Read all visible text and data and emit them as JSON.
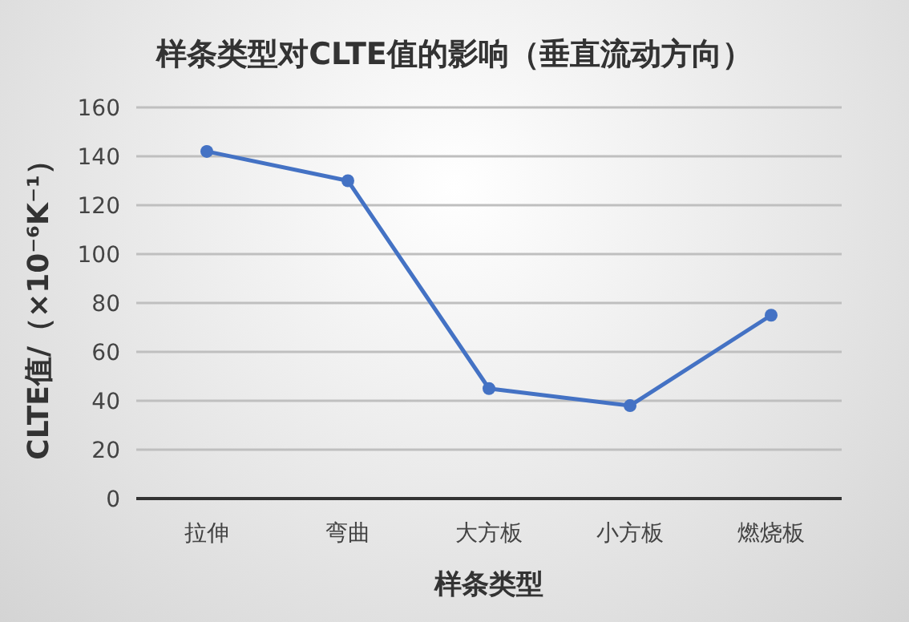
{
  "chart_data": {
    "type": "line",
    "title": "样条类型对CLTE值的影响（垂直流动方向）",
    "xlabel": "样条类型",
    "ylabel": "CLTE值/（×10⁻⁶K⁻¹）",
    "categories": [
      "拉伸",
      "弯曲",
      "大方板",
      "小方板",
      "燃烧板"
    ],
    "series": [
      {
        "color": "#4472c4",
        "values": [
          142,
          130,
          45,
          38,
          75
        ]
      }
    ],
    "ylim": [
      0,
      160
    ],
    "yticks": [
      0,
      20,
      40,
      60,
      80,
      100,
      120,
      140,
      160
    ],
    "grid": "y",
    "marker": "circle",
    "line_style": "solid"
  }
}
